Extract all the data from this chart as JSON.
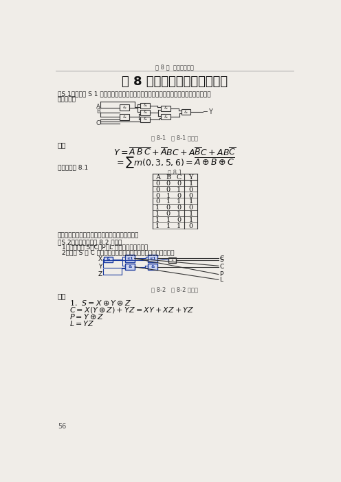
{
  "page_bg": "#f0ede8",
  "header_text": "第 8 章  组合数字电路",
  "title": "第 8 章组合数字电路习题解答",
  "s1_intro_1": "【S 1】分析图 S 1 所示电路的逻辑功能，写出输出的逻辑表达式，列出真值表，说明其",
  "s1_intro_2": "逻辑功能。",
  "fig1_caption": "图 8-1   题 8-1 电路图",
  "jie_label": "解：",
  "truth_table_intro": "真值表见表 8.1",
  "table_caption": "表 8.1",
  "table_headers": [
    "A",
    "B",
    "C",
    "Y"
  ],
  "table_data": [
    [
      0,
      0,
      0,
      1
    ],
    [
      0,
      0,
      1,
      0
    ],
    [
      0,
      1,
      0,
      0
    ],
    [
      0,
      1,
      1,
      1
    ],
    [
      1,
      0,
      0,
      0
    ],
    [
      1,
      0,
      1,
      1
    ],
    [
      1,
      1,
      0,
      1
    ],
    [
      1,
      1,
      1,
      0
    ]
  ],
  "conclusion": "根据真值表可以判断该电路是三变量异或非电路。",
  "s2_intro": "【S 2】逻辑电路如图 8 2 所示：",
  "s2_item1": "1．写出输出 S、C、P、L 的逻辑函数表达式；",
  "s2_item2": "2．当取 S 和 C 作为电路的输出时，此电路的逻辑功能是什么？",
  "fig2_caption": "图 8-2   题 8-2 电路图",
  "jie2_label": "解：",
  "page_num": "56",
  "font_color": "#111111",
  "title_color": "#111111",
  "header_color": "#444444",
  "circuit1_color": "#333333",
  "circuit2_color": "#1a3a9e",
  "circuit2_fill": "#ccd4f0"
}
